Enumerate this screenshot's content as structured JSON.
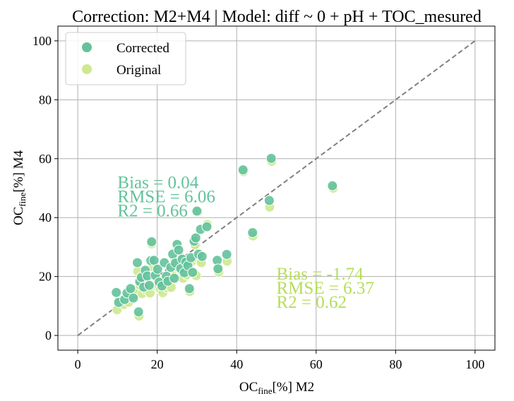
{
  "chart_data": {
    "type": "scatter",
    "title": "Correction: M2+M4 | Model: diff ~ 0 + pH + TOC_mesured",
    "xlabel": {
      "main": "OC",
      "sub": "fine",
      "rest": "[%] M2"
    },
    "ylabel": {
      "main": "OC",
      "sub": "fine",
      "rest": "[%] M4"
    },
    "xlim": [
      -5,
      105
    ],
    "ylim": [
      -5,
      105
    ],
    "xticks": [
      "0",
      "20",
      "40",
      "60",
      "80",
      "100"
    ],
    "yticks": [
      "0",
      "20",
      "40",
      "60",
      "80",
      "100"
    ],
    "grid": true,
    "legend_position": "top-left",
    "identity_line": {
      "from": [
        0,
        0
      ],
      "to": [
        100,
        100
      ],
      "color": "#808080",
      "style": "dashed"
    },
    "series": [
      {
        "name": "Corrected",
        "color": "#63c29c",
        "points": [
          [
            9.7,
            14.6
          ],
          [
            10.3,
            11.2
          ],
          [
            11.8,
            12.2
          ],
          [
            12.4,
            14.4
          ],
          [
            13.3,
            15.9
          ],
          [
            14.0,
            12.7
          ],
          [
            15.0,
            24.7
          ],
          [
            15.3,
            8.0
          ],
          [
            15.6,
            18.3
          ],
          [
            16.0,
            19.7
          ],
          [
            16.6,
            16.4
          ],
          [
            17.0,
            22.1
          ],
          [
            17.5,
            20.2
          ],
          [
            18.0,
            17.0
          ],
          [
            18.4,
            25.4
          ],
          [
            18.6,
            31.8
          ],
          [
            19.2,
            25.5
          ],
          [
            19.5,
            20.4
          ],
          [
            20.1,
            22.5
          ],
          [
            20.5,
            18.1
          ],
          [
            21.2,
            16.8
          ],
          [
            21.8,
            24.7
          ],
          [
            22.3,
            20.1
          ],
          [
            22.7,
            18.4
          ],
          [
            23.4,
            23.1
          ],
          [
            23.9,
            27.6
          ],
          [
            24.3,
            19.4
          ],
          [
            24.6,
            24.6
          ],
          [
            25.0,
            30.9
          ],
          [
            25.4,
            29.0
          ],
          [
            25.9,
            22.7
          ],
          [
            26.3,
            25.9
          ],
          [
            26.8,
            21.3
          ],
          [
            27.2,
            24.9
          ],
          [
            27.7,
            23.7
          ],
          [
            28.1,
            15.9
          ],
          [
            28.5,
            26.4
          ],
          [
            28.9,
            21.4
          ],
          [
            29.3,
            32.0
          ],
          [
            29.7,
            33.1
          ],
          [
            30.0,
            42.2
          ],
          [
            30.4,
            27.6
          ],
          [
            30.9,
            36.0
          ],
          [
            31.3,
            26.8
          ],
          [
            32.5,
            36.9
          ],
          [
            35.1,
            25.5
          ],
          [
            35.3,
            22.6
          ],
          [
            37.5,
            27.5
          ],
          [
            41.6,
            56.2
          ],
          [
            44.0,
            34.9
          ],
          [
            48.2,
            45.8
          ],
          [
            48.7,
            60.1
          ],
          [
            64.1,
            50.8
          ]
        ]
      },
      {
        "name": "Original",
        "color": "#cde98f",
        "points": [
          [
            9.9,
            8.7
          ],
          [
            10.4,
            12.1
          ],
          [
            11.6,
            10.5
          ],
          [
            12.8,
            11.3
          ],
          [
            13.6,
            13.0
          ],
          [
            14.2,
            15.3
          ],
          [
            15.1,
            21.8
          ],
          [
            15.4,
            6.6
          ],
          [
            15.7,
            17.0
          ],
          [
            16.2,
            14.2
          ],
          [
            16.8,
            19.1
          ],
          [
            17.2,
            15.5
          ],
          [
            17.7,
            16.6
          ],
          [
            18.2,
            14.4
          ],
          [
            18.6,
            31.1
          ],
          [
            18.9,
            23.4
          ],
          [
            19.4,
            16.9
          ],
          [
            19.8,
            19.6
          ],
          [
            20.3,
            17.0
          ],
          [
            20.8,
            15.6
          ],
          [
            21.4,
            14.5
          ],
          [
            21.9,
            18.9
          ],
          [
            22.5,
            16.2
          ],
          [
            22.9,
            17.6
          ],
          [
            23.5,
            16.3
          ],
          [
            24.0,
            19.9
          ],
          [
            24.4,
            25.1
          ],
          [
            24.8,
            20.9
          ],
          [
            25.2,
            23.0
          ],
          [
            25.6,
            27.2
          ],
          [
            26.1,
            22.0
          ],
          [
            26.5,
            19.4
          ],
          [
            26.9,
            24.5
          ],
          [
            27.4,
            20.6
          ],
          [
            27.9,
            23.6
          ],
          [
            28.2,
            14.9
          ],
          [
            28.7,
            25.2
          ],
          [
            29.1,
            21.5
          ],
          [
            29.5,
            30.8
          ],
          [
            29.8,
            20.3
          ],
          [
            30.2,
            41.9
          ],
          [
            30.6,
            25.8
          ],
          [
            31.1,
            24.7
          ],
          [
            32.6,
            37.7
          ],
          [
            35.2,
            22.7
          ],
          [
            35.5,
            21.5
          ],
          [
            37.6,
            25.2
          ],
          [
            41.7,
            55.6
          ],
          [
            44.1,
            33.8
          ],
          [
            48.3,
            43.6
          ],
          [
            48.8,
            59.1
          ],
          [
            64.3,
            50.0
          ]
        ]
      }
    ],
    "annotations": [
      {
        "lines": [
          "Bias = 0.04",
          "RMSE = 6.06",
          "R2 = 0.66"
        ],
        "color": "#63c29c",
        "anchor": [
          10,
          50
        ]
      },
      {
        "lines": [
          "Bias = -1.74",
          "RMSE = 6.37",
          "R2 = 0.62"
        ],
        "color": "#b6dd5a",
        "anchor": [
          50,
          19
        ]
      }
    ]
  }
}
